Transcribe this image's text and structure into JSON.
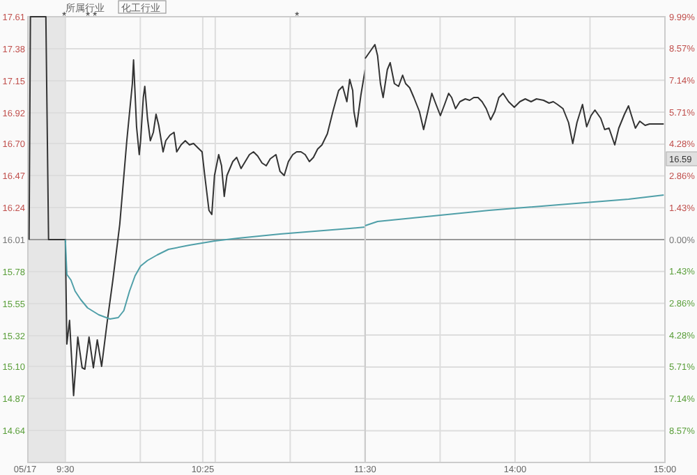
{
  "chart_data": [
    {
      "type": "line",
      "annotations": [
        "所属行业",
        "化工行业",
        "*",
        "*",
        "*",
        "*",
        "05/17"
      ],
      "xlim": [
        9.25,
        11.5
      ],
      "xticks": [
        {
          "value": 9.5,
          "label": "9:30"
        },
        {
          "value": 10,
          "label": null
        },
        {
          "value": 10.4167,
          "label": "10:25"
        },
        {
          "value": 10.5,
          "label": null
        },
        {
          "value": 11,
          "label": null
        },
        {
          "value": 11.5,
          "label": "11:30"
        }
      ],
      "ylim": [
        14.41,
        17.61
      ],
      "yticks": [
        {
          "value": 14.64,
          "label": "14.64"
        },
        {
          "value": 14.87,
          "label": "14.87"
        },
        {
          "value": 15.1,
          "label": "15.10"
        },
        {
          "value": 15.32,
          "label": "15.32"
        },
        {
          "value": 15.55,
          "label": "15.55"
        },
        {
          "value": 15.78,
          "label": "15.78"
        },
        {
          "value": 16.01,
          "label": "16.01"
        },
        {
          "value": 16.24,
          "label": "16.24"
        },
        {
          "value": 16.47,
          "label": "16.47"
        },
        {
          "value": 16.7,
          "label": "16.70"
        },
        {
          "value": 16.92,
          "label": "16.92"
        },
        {
          "value": 17.15,
          "label": "17.15"
        },
        {
          "value": 17.38,
          "label": "17.38"
        },
        {
          "value": 17.61,
          "label": "17.61"
        }
      ],
      "grid": true,
      "marker": "none",
      "line_style": "solid",
      "ref_lines": [
        {
          "axis": "y",
          "value": 16.01,
          "color": "#999999"
        }
      ],
      "bands": [
        {
          "axis": "x",
          "from": 9.25,
          "to": 9.5,
          "color": "#e6e6e6"
        }
      ],
      "series": [
        {
          "color": "#333333",
          "x": [
            9.258,
            9.267,
            9.37,
            9.388,
            9.5,
            9.51,
            9.528,
            9.555,
            9.583,
            9.612,
            9.63,
            9.658,
            9.687,
            9.713,
            9.742,
            9.778,
            9.817,
            9.863,
            9.91,
            9.947,
            9.955,
            9.975,
            9.993,
            10.002,
            10.02,
            10.03,
            10.048,
            10.067,
            10.087,
            10.105,
            10.123,
            10.152,
            10.17,
            10.198,
            10.225,
            10.243,
            10.272,
            10.3,
            10.328,
            10.355,
            10.383,
            10.412,
            10.43,
            10.458,
            10.477,
            10.495,
            10.523,
            10.542,
            10.56,
            10.578,
            10.617,
            10.643,
            10.672,
            10.7,
            10.728,
            10.755,
            10.783,
            10.812,
            10.84,
            10.867,
            10.905,
            10.932,
            10.96,
            10.988,
            11.017,
            11.043,
            11.072,
            11.1,
            11.128,
            11.155,
            11.183,
            11.212,
            11.248,
            11.285,
            11.323,
            11.35,
            11.378,
            11.397,
            11.417,
            11.425,
            11.443,
            11.472,
            11.5
          ],
          "values": [
            16.01,
            17.61,
            17.61,
            16.01,
            16.01,
            15.26,
            15.43,
            14.89,
            15.31,
            15.09,
            15.08,
            15.31,
            15.09,
            15.29,
            15.1,
            15.41,
            15.72,
            16.12,
            16.72,
            17.13,
            17.3,
            16.82,
            16.62,
            16.72,
            17.03,
            17.11,
            16.88,
            16.72,
            16.78,
            16.91,
            16.83,
            16.64,
            16.72,
            16.76,
            16.78,
            16.64,
            16.69,
            16.72,
            16.69,
            16.7,
            16.67,
            16.64,
            16.47,
            16.22,
            16.19,
            16.47,
            16.62,
            16.54,
            16.32,
            16.47,
            16.57,
            16.6,
            16.52,
            16.57,
            16.62,
            16.64,
            16.61,
            16.56,
            16.54,
            16.59,
            16.62,
            16.5,
            16.47,
            16.57,
            16.62,
            16.64,
            16.64,
            16.62,
            16.57,
            16.6,
            16.66,
            16.69,
            16.77,
            16.93,
            17.08,
            17.11,
            17.0,
            17.16,
            17.08,
            16.93,
            16.82,
            17.05,
            17.23
          ]
        },
        {
          "color": "#4f9fa8",
          "x": [
            9.5,
            9.51,
            9.537,
            9.565,
            9.602,
            9.648,
            9.723,
            9.798,
            9.853,
            9.89,
            9.928,
            9.965,
            10.002,
            10.048,
            10.113,
            10.188,
            10.328,
            10.495,
            10.653,
            10.932,
            11.397,
            11.5
          ],
          "values": [
            16.01,
            15.76,
            15.72,
            15.64,
            15.58,
            15.52,
            15.47,
            15.44,
            15.45,
            15.5,
            15.64,
            15.75,
            15.82,
            15.86,
            15.9,
            15.94,
            15.97,
            16.0,
            16.02,
            16.05,
            16.09,
            16.1
          ]
        }
      ]
    },
    {
      "type": "line",
      "annotations": [
        "16.59"
      ],
      "xlim": [
        13,
        15
      ],
      "xticks": [
        {
          "value": 13.5,
          "label": null
        },
        {
          "value": 14,
          "label": "14:00"
        },
        {
          "value": 14.5,
          "label": null
        },
        {
          "value": 15,
          "label": "15:00"
        }
      ],
      "ylim": [
        14.41,
        17.61
      ],
      "y2lim": [
        -9.99,
        9.99
      ],
      "y2ticks": [
        {
          "value": -8.57,
          "label": "8.57%"
        },
        {
          "value": -7.14,
          "label": "7.14%"
        },
        {
          "value": -5.71,
          "label": "5.71%"
        },
        {
          "value": -4.28,
          "label": "4.28%"
        },
        {
          "value": -2.86,
          "label": "2.86%"
        },
        {
          "value": -1.43,
          "label": "1.43%"
        },
        {
          "value": 0,
          "label": "0.00%"
        },
        {
          "value": 1.43,
          "label": "1.43%"
        },
        {
          "value": 2.86,
          "label": "2.86%"
        },
        {
          "value": 4.28,
          "label": "4.28%"
        },
        {
          "value": 5.71,
          "label": "5.71%"
        },
        {
          "value": 7.14,
          "label": "7.14%"
        },
        {
          "value": 8.57,
          "label": "8.57%"
        },
        {
          "value": 9.99,
          "label": "9.99%"
        }
      ],
      "grid": true,
      "marker": "none",
      "line_style": "solid",
      "ref_lines": [
        {
          "axis": "y2",
          "value": 0,
          "color": "#999999"
        }
      ],
      "series": [
        {
          "color": "#333333",
          "x": [
            13.0,
            13.065,
            13.083,
            13.102,
            13.12,
            13.148,
            13.167,
            13.195,
            13.223,
            13.25,
            13.27,
            13.297,
            13.325,
            13.362,
            13.39,
            13.418,
            13.445,
            13.473,
            13.502,
            13.53,
            13.557,
            13.577,
            13.603,
            13.632,
            13.668,
            13.697,
            13.725,
            13.753,
            13.78,
            13.808,
            13.837,
            13.865,
            13.892,
            13.92,
            13.957,
            13.995,
            14.032,
            14.068,
            14.107,
            14.143,
            14.19,
            14.227,
            14.255,
            14.283,
            14.32,
            14.357,
            14.385,
            14.413,
            14.45,
            14.478,
            14.507,
            14.533,
            14.572,
            14.598,
            14.627,
            14.665,
            14.692,
            14.73,
            14.757,
            14.777,
            14.803,
            14.832,
            14.868,
            14.897,
            14.933,
            14.992
          ],
          "values": [
            17.31,
            17.41,
            17.33,
            17.13,
            17.03,
            17.23,
            17.28,
            17.13,
            17.11,
            17.19,
            17.13,
            17.1,
            17.03,
            16.93,
            16.8,
            16.93,
            17.06,
            16.98,
            16.9,
            16.98,
            17.06,
            17.03,
            16.95,
            17.0,
            17.02,
            17.01,
            17.03,
            17.03,
            17.0,
            16.95,
            16.87,
            16.93,
            17.03,
            17.06,
            17.0,
            16.96,
            17.0,
            17.02,
            17.0,
            17.02,
            17.01,
            16.99,
            17.0,
            16.98,
            16.95,
            16.85,
            16.7,
            16.85,
            16.98,
            16.82,
            16.9,
            16.94,
            16.88,
            16.8,
            16.81,
            16.69,
            16.81,
            16.91,
            16.97,
            16.9,
            16.81,
            16.86,
            16.83,
            16.84,
            16.84,
            16.84
          ]
        },
        {
          "color": "#4f9fa8",
          "x": [
            13.0,
            13.083,
            13.362,
            13.827,
            14.292,
            14.757,
            14.992
          ],
          "values": [
            16.11,
            16.14,
            16.17,
            16.22,
            16.26,
            16.3,
            16.33
          ]
        }
      ]
    }
  ]
}
